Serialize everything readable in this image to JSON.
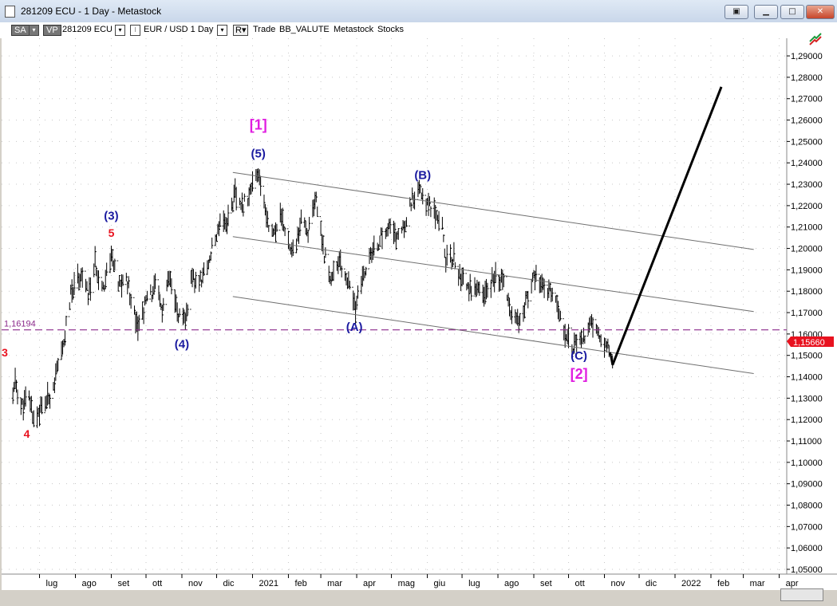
{
  "window": {
    "title": "281209 ECU - 1 Day - Metastock"
  },
  "toolbar": {
    "sa_label": "SA",
    "vp_label": "VP",
    "symbol": "281209 ECU",
    "security": "EUR / USD  1 Day",
    "r_label": "R",
    "trade": "Trade",
    "bb_value": "BB_VALUTE",
    "metastock": "Metastock",
    "stocks": "Stocks"
  },
  "chart_data": {
    "type": "candlestick",
    "y_axis": {
      "min": 1.045,
      "max": 1.295,
      "ticks": [
        "1,29000",
        "1,28000",
        "1,27000",
        "1,26000",
        "1,25000",
        "1,24000",
        "1,23000",
        "1,22000",
        "1,21000",
        "1,20000",
        "1,19000",
        "1,18000",
        "1,17000",
        "1,16000",
        "1,15000",
        "1,14000",
        "1,13000",
        "1,12000",
        "1,11000",
        "1,10000",
        "1,09000",
        "1,08000",
        "1,07000",
        "1,06000",
        "1,05000"
      ],
      "tick_values": [
        1.29,
        1.28,
        1.27,
        1.26,
        1.25,
        1.24,
        1.23,
        1.22,
        1.21,
        1.2,
        1.19,
        1.18,
        1.17,
        1.16,
        1.15,
        1.14,
        1.13,
        1.12,
        1.11,
        1.1,
        1.09,
        1.08,
        1.07,
        1.06,
        1.05
      ]
    },
    "x_axis": {
      "labels": [
        "lug",
        "ago",
        "set",
        "ott",
        "nov",
        "dic",
        "2021",
        "feb",
        "mar",
        "apr",
        "mag",
        "giu",
        "lug",
        "ago",
        "set",
        "ott",
        "nov",
        "dic",
        "2022",
        "feb",
        "mar",
        "apr"
      ],
      "label_dates": [
        "2020-07-01",
        "2020-08-01",
        "2020-09-01",
        "2020-10-01",
        "2020-11-01",
        "2020-12-01",
        "2021-01-01",
        "2021-02-01",
        "2021-03-01",
        "2021-04-01",
        "2021-05-01",
        "2021-06-01",
        "2021-07-01",
        "2021-08-01",
        "2021-09-01",
        "2021-10-01",
        "2021-11-01",
        "2021-12-01",
        "2022-01-01",
        "2022-02-01",
        "2022-03-01",
        "2022-04-01"
      ]
    },
    "price_series": [
      [
        "2020-06-08",
        1.13
      ],
      [
        "2020-06-10",
        1.138
      ],
      [
        "2020-06-15",
        1.126
      ],
      [
        "2020-06-22",
        1.13
      ],
      [
        "2020-06-26",
        1.12
      ],
      [
        "2020-07-02",
        1.125
      ],
      [
        "2020-07-09",
        1.13
      ],
      [
        "2020-07-14",
        1.138
      ],
      [
        "2020-07-21",
        1.152
      ],
      [
        "2020-07-27",
        1.175
      ],
      [
        "2020-07-31",
        1.185
      ],
      [
        "2020-08-06",
        1.188
      ],
      [
        "2020-08-12",
        1.178
      ],
      [
        "2020-08-18",
        1.192
      ],
      [
        "2020-08-25",
        1.182
      ],
      [
        "2020-09-01",
        1.198
      ],
      [
        "2020-09-07",
        1.182
      ],
      [
        "2020-09-14",
        1.186
      ],
      [
        "2020-09-21",
        1.17
      ],
      [
        "2020-09-25",
        1.164
      ],
      [
        "2020-10-01",
        1.175
      ],
      [
        "2020-10-09",
        1.182
      ],
      [
        "2020-10-15",
        1.171
      ],
      [
        "2020-10-21",
        1.186
      ],
      [
        "2020-10-28",
        1.17
      ],
      [
        "2020-11-04",
        1.165
      ],
      [
        "2020-11-09",
        1.185
      ],
      [
        "2020-11-16",
        1.184
      ],
      [
        "2020-11-23",
        1.192
      ],
      [
        "2020-12-01",
        1.206
      ],
      [
        "2020-12-04",
        1.214
      ],
      [
        "2020-12-10",
        1.212
      ],
      [
        "2020-12-17",
        1.226
      ],
      [
        "2020-12-22",
        1.218
      ],
      [
        "2021-01-06",
        1.234
      ],
      [
        "2021-01-12",
        1.218
      ],
      [
        "2021-01-18",
        1.206
      ],
      [
        "2021-01-25",
        1.214
      ],
      [
        "2021-02-01",
        1.205
      ],
      [
        "2021-02-05",
        1.197
      ],
      [
        "2021-02-12",
        1.212
      ],
      [
        "2021-02-18",
        1.208
      ],
      [
        "2021-02-25",
        1.222
      ],
      [
        "2021-03-04",
        1.198
      ],
      [
        "2021-03-09",
        1.186
      ],
      [
        "2021-03-16",
        1.194
      ],
      [
        "2021-03-22",
        1.188
      ],
      [
        "2021-03-31",
        1.172
      ],
      [
        "2021-04-08",
        1.19
      ],
      [
        "2021-04-15",
        1.198
      ],
      [
        "2021-04-22",
        1.205
      ],
      [
        "2021-04-29",
        1.21
      ],
      [
        "2021-05-06",
        1.205
      ],
      [
        "2021-05-12",
        1.21
      ],
      [
        "2021-05-18",
        1.222
      ],
      [
        "2021-05-25",
        1.226
      ],
      [
        "2021-06-01",
        1.222
      ],
      [
        "2021-06-07",
        1.218
      ],
      [
        "2021-06-14",
        1.212
      ],
      [
        "2021-06-17",
        1.194
      ],
      [
        "2021-06-24",
        1.196
      ],
      [
        "2021-06-30",
        1.186
      ],
      [
        "2021-07-07",
        1.182
      ],
      [
        "2021-07-14",
        1.18
      ],
      [
        "2021-07-21",
        1.178
      ],
      [
        "2021-07-30",
        1.188
      ],
      [
        "2021-08-05",
        1.185
      ],
      [
        "2021-08-11",
        1.172
      ],
      [
        "2021-08-19",
        1.168
      ],
      [
        "2021-08-26",
        1.176
      ],
      [
        "2021-09-03",
        1.188
      ],
      [
        "2021-09-09",
        1.182
      ],
      [
        "2021-09-16",
        1.178
      ],
      [
        "2021-09-22",
        1.172
      ],
      [
        "2021-09-29",
        1.16
      ],
      [
        "2021-10-06",
        1.154
      ],
      [
        "2021-10-12",
        1.156
      ],
      [
        "2021-10-20",
        1.164
      ],
      [
        "2021-10-25",
        1.16
      ],
      [
        "2021-10-29",
        1.158
      ],
      [
        "2021-11-04",
        1.155
      ],
      [
        "2021-11-08",
        1.15
      ]
    ],
    "projection": [
      [
        "2021-11-08",
        1.1455
      ],
      [
        "2022-02-10",
        1.2755
      ]
    ],
    "channel_lines": [
      {
        "start": [
          "2020-12-15",
          1.2355
        ],
        "end": [
          "2022-03-10",
          1.1995
        ]
      },
      {
        "start": [
          "2020-12-15",
          1.2055
        ],
        "end": [
          "2022-03-10",
          1.1705
        ]
      },
      {
        "start": [
          "2020-12-15",
          1.1775
        ],
        "end": [
          "2022-03-10",
          1.1415
        ]
      }
    ],
    "horizontal_line": {
      "value": 1.16194,
      "label": "1,16194",
      "color": "#8b2a8b"
    },
    "last_price": {
      "value": 1.1566,
      "label": "1,15660",
      "color": "#e8121f"
    },
    "annotations": [
      {
        "text": "[1]",
        "date": "2021-01-06",
        "price": 1.2555,
        "color": "#e01ee0",
        "size": 18
      },
      {
        "text": "(5)",
        "date": "2021-01-06",
        "price": 1.2425,
        "color": "#1a1aa0",
        "size": 15
      },
      {
        "text": "(3)",
        "date": "2020-09-01",
        "price": 1.2135,
        "color": "#1a1aa0",
        "size": 15
      },
      {
        "text": "5",
        "date": "2020-09-01",
        "price": 1.2055,
        "color": "#e8121f",
        "size": 14
      },
      {
        "text": "(4)",
        "date": "2020-11-01",
        "price": 1.1535,
        "color": "#1a1aa0",
        "size": 15
      },
      {
        "text": "(B)",
        "date": "2021-05-28",
        "price": 1.2325,
        "color": "#1a1aa0",
        "size": 15
      },
      {
        "text": "(A)",
        "date": "2021-03-30",
        "price": 1.1615,
        "color": "#1a1aa0",
        "size": 15
      },
      {
        "text": "(C)",
        "date": "2021-10-10",
        "price": 1.148,
        "color": "#1a1aa0",
        "size": 15
      },
      {
        "text": "[2]",
        "date": "2021-10-10",
        "price": 1.139,
        "color": "#e01ee0",
        "size": 18
      },
      {
        "text": "3",
        "date": "2020-06-01",
        "price": 1.1495,
        "color": "#e8121f",
        "size": 14
      },
      {
        "text": "4",
        "date": "2020-06-20",
        "price": 1.1115,
        "color": "#e8121f",
        "size": 14
      }
    ],
    "colors": {
      "background": "#ffffff",
      "grid": "#c8c8c8",
      "bars": "#000000",
      "channel": "#6f6f6f"
    },
    "grid": true
  }
}
